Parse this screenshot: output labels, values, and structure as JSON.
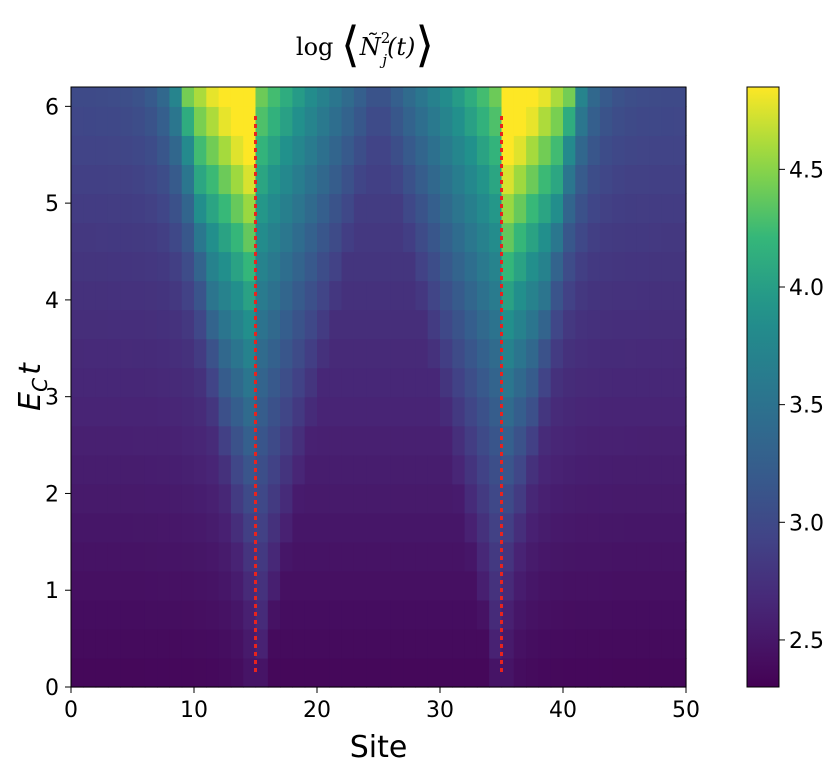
{
  "chart_data": {
    "type": "heatmap",
    "title": "log⟨Ñ²ⱼ(t)⟩",
    "title_parts": {
      "prefix": "log",
      "symbol": "Ñ",
      "superscript": "2",
      "subscript": "j",
      "suffix": "(t)"
    },
    "xlabel": "Site",
    "ylabel": "E_C t",
    "ylabel_parts": {
      "base": "E",
      "sub": "C",
      "rest": "t"
    },
    "xlim": [
      0,
      50
    ],
    "ylim": [
      0,
      6.2
    ],
    "xticks": [
      0,
      10,
      20,
      30,
      40,
      50
    ],
    "yticks": [
      0,
      1,
      2,
      3,
      4,
      5,
      6
    ],
    "n_sites": 50,
    "time_step": 0.3,
    "colormap": "viridis",
    "colorbar": {
      "vmin": 2.3,
      "vmax": 4.85,
      "ticks": [
        2.5,
        3.0,
        3.5,
        4.0,
        4.5
      ]
    },
    "markers": {
      "color": "#e8231e",
      "style": "dotted vertical lines",
      "x": [
        15,
        35
      ],
      "y_range": [
        0.15,
        5.9
      ]
    },
    "grid": false
  }
}
